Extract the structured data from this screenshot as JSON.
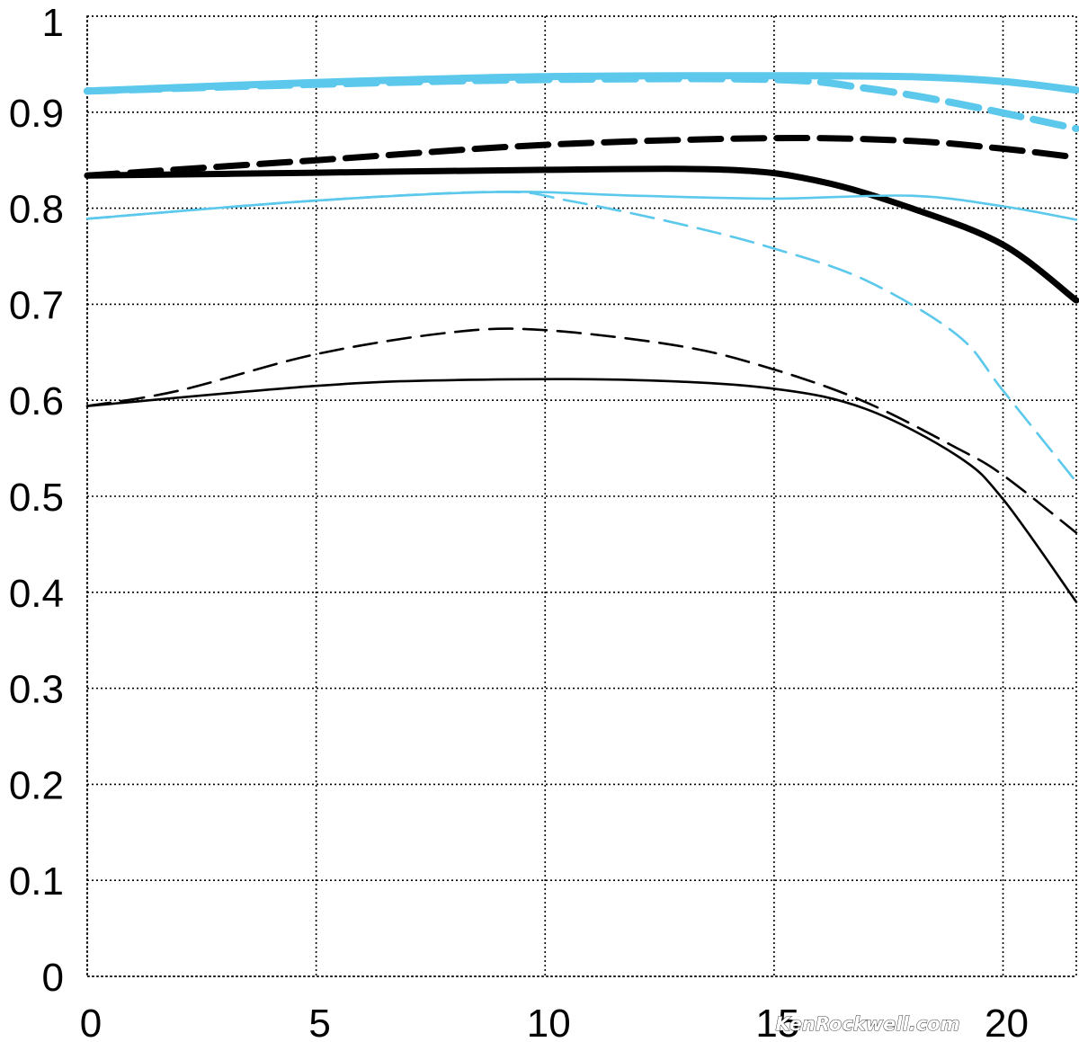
{
  "chart_data": {
    "type": "line",
    "title": "",
    "xlabel": "",
    "ylabel": "",
    "xlim": [
      0,
      21.6
    ],
    "ylim": [
      0,
      1
    ],
    "x_ticks": [
      "0",
      "5",
      "10",
      "15",
      "20"
    ],
    "x_tick_values": [
      0,
      5,
      10,
      15,
      20
    ],
    "y_ticks": [
      "0",
      "0.1",
      "0.2",
      "0.3",
      "0.4",
      "0.5",
      "0.6",
      "0.7",
      "0.8",
      "0.9",
      "1"
    ],
    "y_tick_values": [
      0,
      0.1,
      0.2,
      0.3,
      0.4,
      0.5,
      0.6,
      0.7,
      0.8,
      0.9,
      1
    ],
    "grid": true,
    "legend": "none",
    "colors": {
      "blue": "#5bc8ec",
      "black": "#000000"
    },
    "series": [
      {
        "color": "blue",
        "dash": "solid",
        "weight": "thick",
        "points": [
          [
            0,
            0.922
          ],
          [
            5,
            0.931
          ],
          [
            10,
            0.937
          ],
          [
            15,
            0.938
          ],
          [
            18,
            0.937
          ],
          [
            20,
            0.932
          ],
          [
            21.6,
            0.923
          ]
        ]
      },
      {
        "color": "blue",
        "dash": "dashed",
        "weight": "thick",
        "points": [
          [
            0,
            0.922
          ],
          [
            5,
            0.929
          ],
          [
            10,
            0.934
          ],
          [
            15,
            0.934
          ],
          [
            17,
            0.925
          ],
          [
            19,
            0.909
          ],
          [
            21.6,
            0.883
          ]
        ]
      },
      {
        "color": "black",
        "dash": "solid",
        "weight": "thick",
        "points": [
          [
            0,
            0.834
          ],
          [
            5,
            0.837
          ],
          [
            10,
            0.84
          ],
          [
            14,
            0.84
          ],
          [
            16,
            0.828
          ],
          [
            18,
            0.8
          ],
          [
            20,
            0.762
          ],
          [
            21.6,
            0.704
          ]
        ]
      },
      {
        "color": "black",
        "dash": "dashed",
        "weight": "thick",
        "points": [
          [
            0,
            0.834
          ],
          [
            5,
            0.85
          ],
          [
            10,
            0.866
          ],
          [
            15,
            0.873
          ],
          [
            18,
            0.87
          ],
          [
            20,
            0.862
          ],
          [
            21.6,
            0.853
          ]
        ]
      },
      {
        "color": "blue",
        "dash": "solid",
        "weight": "thin",
        "points": [
          [
            0,
            0.789
          ],
          [
            5,
            0.808
          ],
          [
            9,
            0.817
          ],
          [
            12,
            0.813
          ],
          [
            15,
            0.81
          ],
          [
            18,
            0.813
          ],
          [
            20,
            0.802
          ],
          [
            21.6,
            0.788
          ]
        ]
      },
      {
        "color": "blue",
        "dash": "dashed",
        "weight": "thin",
        "points": [
          [
            0,
            0.789
          ],
          [
            5,
            0.808
          ],
          [
            9,
            0.817
          ],
          [
            10.5,
            0.808
          ],
          [
            13,
            0.783
          ],
          [
            15,
            0.758
          ],
          [
            17,
            0.725
          ],
          [
            19,
            0.668
          ],
          [
            20,
            0.61
          ],
          [
            21.6,
            0.515
          ]
        ]
      },
      {
        "color": "black",
        "dash": "solid",
        "weight": "thin",
        "points": [
          [
            0,
            0.594
          ],
          [
            5,
            0.615
          ],
          [
            8,
            0.621
          ],
          [
            12,
            0.621
          ],
          [
            15,
            0.612
          ],
          [
            17,
            0.591
          ],
          [
            19,
            0.542
          ],
          [
            20,
            0.497
          ],
          [
            21.6,
            0.39
          ]
        ]
      },
      {
        "color": "black",
        "dash": "dashed",
        "weight": "thin",
        "points": [
          [
            0,
            0.594
          ],
          [
            2,
            0.61
          ],
          [
            5,
            0.648
          ],
          [
            8,
            0.671
          ],
          [
            10,
            0.673
          ],
          [
            13,
            0.656
          ],
          [
            15,
            0.632
          ],
          [
            17,
            0.598
          ],
          [
            19,
            0.55
          ],
          [
            20,
            0.522
          ],
          [
            21.6,
            0.462
          ]
        ]
      }
    ]
  },
  "watermark": "KenRockwell.com"
}
